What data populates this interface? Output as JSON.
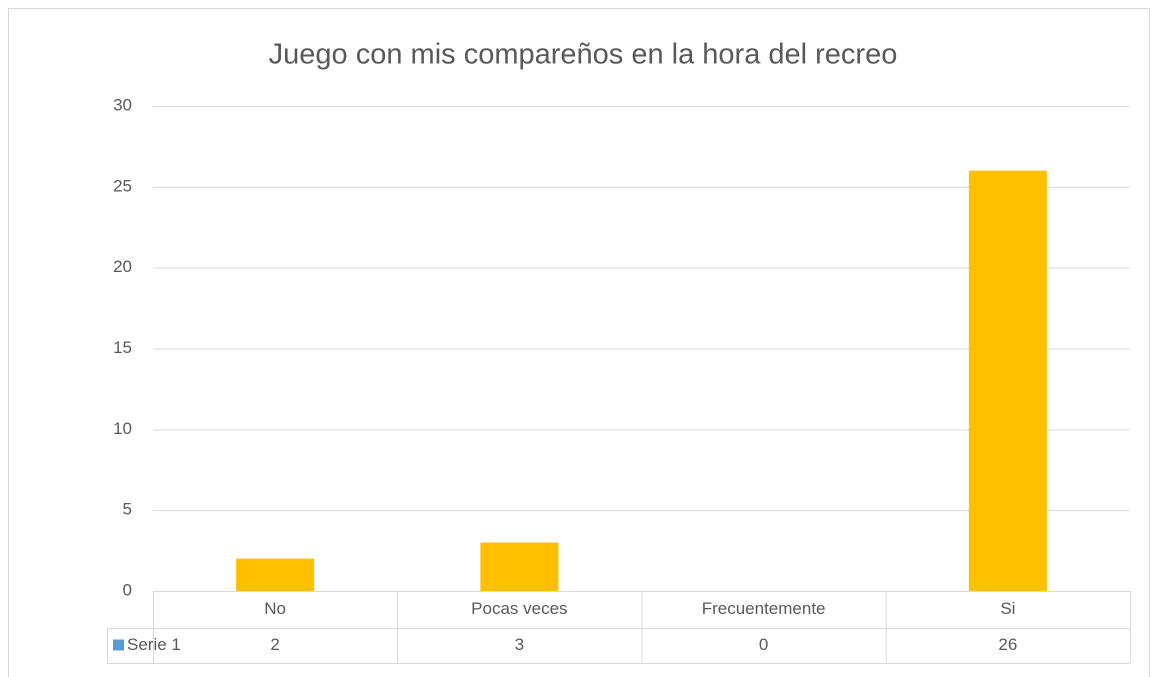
{
  "chart_data": {
    "type": "bar",
    "title": "Juego con mis compareños en la hora del recreo",
    "categories": [
      "No",
      "Pocas veces",
      "Frecuentemente",
      "Si"
    ],
    "series": [
      {
        "name": "Serie 1",
        "color": "#ffc000",
        "legend_color": "#5b9bd5",
        "values": [
          2,
          3,
          0,
          26
        ]
      }
    ],
    "ylim": [
      0,
      30
    ],
    "yticks": [
      0,
      5,
      10,
      15,
      20,
      25,
      30
    ],
    "grid": true,
    "data_table": true
  }
}
